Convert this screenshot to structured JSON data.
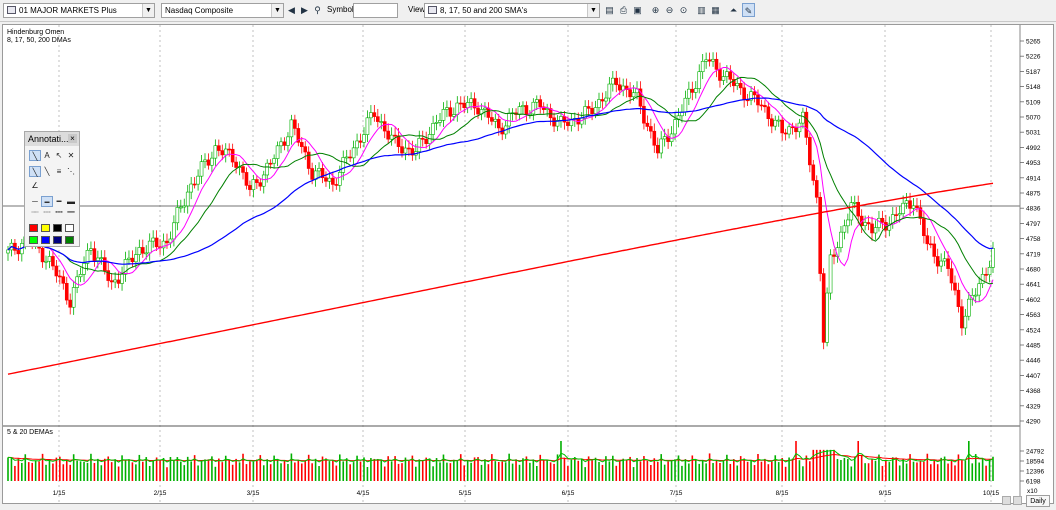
{
  "toolbar": {
    "watchlist": "01 MAJOR MARKETS Plus",
    "symbol_name": "Nasdaq Composite",
    "symbol_label": "Symbol:",
    "symbol_value": "",
    "view_label": "View:",
    "view_value": "8, 17, 50 and 200 SMA's"
  },
  "chart": {
    "title": "Hindenburg Omen",
    "price_panel_label": "8, 17, 50, 200 DMAs",
    "volume_panel_label": "5 & 20 DEMAs",
    "volume_multiplier": "x10",
    "timeframe": "Daily",
    "date_ticks": [
      "1/15",
      "2/15",
      "3/15",
      "4/15",
      "5/15",
      "6/15",
      "7/15",
      "8/15",
      "9/15",
      "10/15"
    ],
    "price_ticks": [
      "5265",
      "5226",
      "5187",
      "5148",
      "5109",
      "5070",
      "5031",
      "4992",
      "4953",
      "4914",
      "4875",
      "4836",
      "4797",
      "4758",
      "4719",
      "4680",
      "4641",
      "4602",
      "4563",
      "4524",
      "4485",
      "4446",
      "4407",
      "4368",
      "4329",
      "4290"
    ],
    "volume_ticks": [
      "24792",
      "18594",
      "12396",
      "6198"
    ],
    "colors": {
      "up": "#00b000",
      "down": "#ff0000",
      "sma8": "#ff00ff",
      "sma17": "#008000",
      "sma50": "#0000ff",
      "sma200": "#ff0000"
    }
  },
  "annotation_panel": {
    "title": "Annotati...",
    "colors": [
      "#ff0000",
      "#ffff00",
      "#000000",
      "#ffffff",
      "#00ff00",
      "#0000ff",
      "#000080",
      "#008000"
    ]
  }
}
